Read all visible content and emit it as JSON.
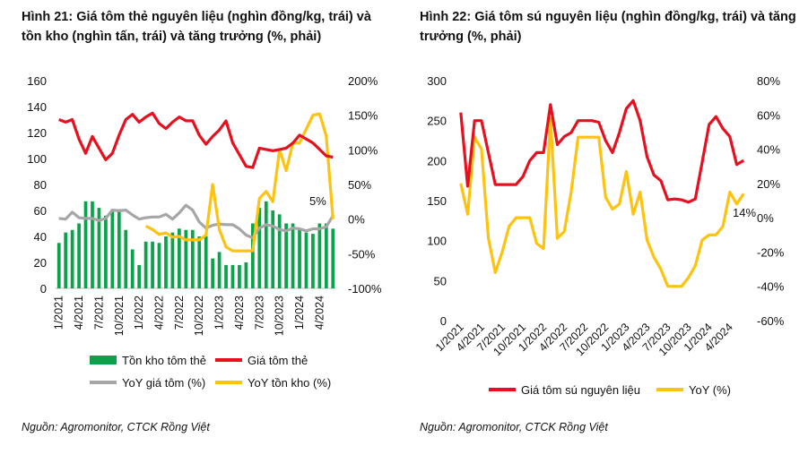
{
  "colors": {
    "bar": "#0aa24a",
    "red": "#e8101f",
    "gray": "#a6a6a6",
    "yellow": "#ffc20e"
  },
  "chart_data": [
    {
      "type": "bar",
      "title": "Hình 21: Giá tôm thẻ nguyên liệu (nghìn đồng/kg, trái) và tồn kho (nghìn tấn, trái) và tăng trưởng (%, phải)",
      "source": "Nguồn: Agromonitor, CTCK Rồng Việt",
      "x": [
        "1/2021",
        "2/2021",
        "3/2021",
        "4/2021",
        "5/2021",
        "6/2021",
        "7/2021",
        "8/2021",
        "9/2021",
        "10/2021",
        "11/2021",
        "12/2021",
        "1/2022",
        "2/2022",
        "3/2022",
        "4/2022",
        "5/2022",
        "6/2022",
        "7/2022",
        "8/2022",
        "9/2022",
        "10/2022",
        "11/2022",
        "12/2022",
        "1/2023",
        "2/2023",
        "3/2023",
        "4/2023",
        "5/2023",
        "6/2023",
        "7/2023",
        "8/2023",
        "9/2023",
        "10/2023",
        "11/2023",
        "12/2023",
        "1/2024",
        "2/2024",
        "3/2024",
        "4/2024",
        "5/2024",
        "6/2024"
      ],
      "xtick_labels": [
        "1/2021",
        "4/2021",
        "7/2021",
        "10/2021",
        "1/2022",
        "4/2022",
        "7/2022",
        "10/2022",
        "1/2023",
        "4/2023",
        "7/2023",
        "10/2023",
        "1/2024",
        "4/2024"
      ],
      "y_left": {
        "ticks": [
          "0",
          "20",
          "40",
          "60",
          "80",
          "100",
          "120",
          "140",
          "160"
        ],
        "ylim": [
          0,
          160
        ]
      },
      "y_right": {
        "ticks": [
          "-100%",
          "-50%",
          "0%",
          "50%",
          "100%",
          "150%",
          "200%"
        ],
        "ylim": [
          -100,
          200
        ]
      },
      "series": [
        {
          "name": "Tồn kho tôm thẻ",
          "type": "bar",
          "axis": "left",
          "values": [
            35,
            43,
            45,
            50,
            67,
            67,
            62,
            56,
            61,
            61,
            45,
            30,
            18,
            36,
            36,
            35,
            40,
            43,
            46,
            45,
            45,
            40,
            40,
            23,
            28,
            18,
            18,
            18,
            20,
            50,
            62,
            67,
            60,
            57,
            50,
            50,
            45,
            43,
            42,
            50,
            50,
            46
          ]
        },
        {
          "name": "Giá tôm thẻ",
          "type": "line",
          "axis": "left",
          "values": [
            130,
            128,
            130,
            115,
            104,
            117,
            108,
            99,
            104,
            118,
            130,
            134,
            128,
            132,
            135,
            127,
            123,
            128,
            132,
            129,
            129,
            118,
            111,
            117,
            122,
            129,
            112,
            103,
            94,
            93,
            108,
            107,
            106,
            107,
            108,
            112,
            118,
            115,
            112,
            107,
            102,
            101
          ]
        },
        {
          "name": "YoY giá tôm (%)",
          "type": "line",
          "axis": "right",
          "values": [
            1,
            0,
            10,
            2,
            1,
            1,
            -2,
            1,
            13,
            12,
            13,
            6,
            0,
            2,
            3,
            3,
            7,
            0,
            9,
            20,
            13,
            -4,
            -13,
            -9,
            -7,
            -8,
            -8,
            -14,
            -23,
            -27,
            -13,
            -8,
            -10,
            -15,
            -17,
            -13,
            -14,
            -17,
            -14,
            -14,
            -11,
            5
          ]
        },
        {
          "name": "YoY tồn kho (%)",
          "type": "line",
          "axis": "right",
          "values": [
            null,
            null,
            null,
            null,
            null,
            null,
            null,
            null,
            null,
            null,
            null,
            null,
            null,
            -10,
            -15,
            -22,
            -20,
            -26,
            -25,
            -30,
            -30,
            -30,
            -23,
            50,
            -15,
            -40,
            -46,
            -46,
            -46,
            -46,
            30,
            40,
            25,
            100,
            70,
            110,
            110,
            130,
            150,
            152,
            120,
            0
          ]
        }
      ],
      "annotations": [
        "5%"
      ],
      "legend": [
        "Tồn kho tôm thẻ",
        "Giá tôm thẻ",
        "YoY giá tôm (%)",
        "YoY tồn kho (%)"
      ]
    },
    {
      "type": "line",
      "title": "Hình 22: Giá tôm sú nguyên liệu (nghìn đồng/kg, trái) và tăng trưởng (%, phải)",
      "source": "Nguồn: Agromonitor, CTCK Rồng Việt",
      "x": [
        "1/2021",
        "2/2021",
        "3/2021",
        "4/2021",
        "5/2021",
        "6/2021",
        "7/2021",
        "8/2021",
        "9/2021",
        "10/2021",
        "11/2021",
        "12/2021",
        "1/2022",
        "2/2022",
        "3/2022",
        "4/2022",
        "5/2022",
        "6/2022",
        "7/2022",
        "8/2022",
        "9/2022",
        "10/2022",
        "11/2022",
        "12/2022",
        "1/2023",
        "2/2023",
        "3/2023",
        "4/2023",
        "5/2023",
        "6/2023",
        "7/2023",
        "8/2023",
        "9/2023",
        "10/2023",
        "11/2023",
        "12/2023",
        "1/2024",
        "2/2024",
        "3/2024",
        "4/2024",
        "5/2024",
        "6/2024"
      ],
      "xtick_labels": [
        "1/2021",
        "4/2021",
        "7/2021",
        "10/2021",
        "1/2022",
        "4/2022",
        "7/2022",
        "10/2022",
        "1/2023",
        "4/2023",
        "7/2023",
        "10/2023",
        "1/2024",
        "4/2024"
      ],
      "y_left": {
        "ticks": [
          "0",
          "50",
          "100",
          "150",
          "200",
          "250",
          "300"
        ],
        "ylim": [
          0,
          300
        ]
      },
      "y_right": {
        "ticks": [
          "-60%",
          "-40%",
          "-20%",
          "0%",
          "20%",
          "40%",
          "60%",
          "80%"
        ],
        "ylim": [
          -60,
          80
        ]
      },
      "series": [
        {
          "name": "Giá tôm sú nguyên liệu",
          "type": "line",
          "axis": "left",
          "values": [
            260,
            168,
            250,
            250,
            210,
            170,
            170,
            170,
            170,
            180,
            200,
            210,
            210,
            270,
            220,
            230,
            235,
            250,
            250,
            250,
            248,
            225,
            210,
            235,
            265,
            275,
            250,
            205,
            182,
            175,
            151,
            152,
            151,
            148,
            152,
            198,
            245,
            255,
            240,
            230,
            195,
            200
          ]
        },
        {
          "name": "YoY (%)",
          "type": "line",
          "axis": "right",
          "values": [
            20,
            2,
            47,
            40,
            -12,
            -32,
            -20,
            -5,
            0,
            0,
            0,
            -15,
            -18,
            58,
            -12,
            -8,
            15,
            47,
            47,
            47,
            47,
            12,
            5,
            8,
            27,
            2,
            15,
            -13,
            -23,
            -30,
            -40,
            -40,
            -40,
            -35,
            -28,
            -13,
            -10,
            -10,
            -5,
            15,
            8,
            14
          ]
        }
      ],
      "annotations": [
        "14%"
      ],
      "legend": [
        "Giá tôm sú nguyên liệu",
        "YoY (%)"
      ]
    }
  ]
}
